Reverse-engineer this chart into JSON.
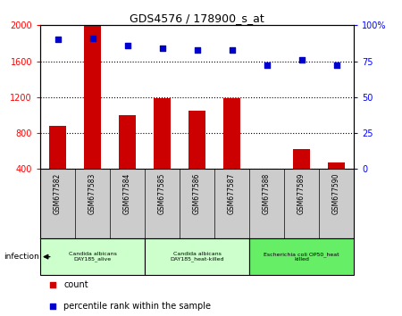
{
  "title": "GDS4576 / 178900_s_at",
  "samples": [
    "GSM677582",
    "GSM677583",
    "GSM677584",
    "GSM677585",
    "GSM677586",
    "GSM677587",
    "GSM677588",
    "GSM677589",
    "GSM677590"
  ],
  "counts": [
    880,
    2000,
    1000,
    1185,
    1050,
    1185,
    390,
    620,
    470
  ],
  "percentiles": [
    90,
    91,
    86,
    84,
    83,
    83,
    72,
    76,
    72
  ],
  "ylim_left": [
    400,
    2000
  ],
  "ylim_right": [
    0,
    100
  ],
  "yticks_left": [
    400,
    800,
    1200,
    1600,
    2000
  ],
  "yticks_right": [
    0,
    25,
    50,
    75,
    100
  ],
  "bar_color": "#cc0000",
  "dot_color": "#0000cc",
  "groups": [
    {
      "label": "Candida albicans\nDAY185_alive",
      "start": 0,
      "end": 3,
      "color": "#ccffcc"
    },
    {
      "label": "Candida albicans\nDAY185_heat-killed",
      "start": 3,
      "end": 6,
      "color": "#ccffcc"
    },
    {
      "label": "Escherichia coli OP50_heat\nkilled",
      "start": 6,
      "end": 9,
      "color": "#66ee66"
    }
  ],
  "infection_label": "infection",
  "legend_count": "count",
  "legend_percentile": "percentile rank within the sample",
  "bar_width": 0.5,
  "background_color": "#ffffff",
  "tick_bg_color": "#cccccc"
}
